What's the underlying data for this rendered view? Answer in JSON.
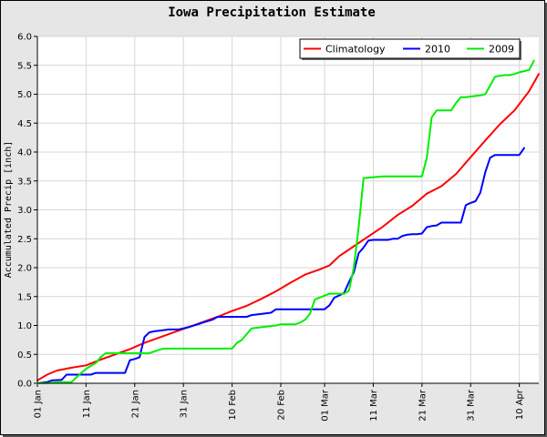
{
  "chart_data": {
    "type": "line",
    "title": "Iowa Precipitation Estimate",
    "ylabel": "Accumulated Precip [inch]",
    "xlabel": "",
    "ylim": [
      0,
      6.0
    ],
    "yticks": [
      0.0,
      0.5,
      1.0,
      1.5,
      2.0,
      2.5,
      3.0,
      3.5,
      4.0,
      4.5,
      5.0,
      5.5,
      6.0
    ],
    "ytick_labels": [
      "0.0",
      "0.5",
      "1.0",
      "1.5",
      "2.0",
      "2.5",
      "3.0",
      "3.5",
      "4.0",
      "4.5",
      "5.0",
      "5.5",
      "6.0"
    ],
    "xlim": [
      1,
      104
    ],
    "xticks": [
      1,
      11,
      21,
      31,
      41,
      51,
      60,
      70,
      80,
      90,
      100
    ],
    "xtick_labels": [
      "01 Jan",
      "11 Jan",
      "21 Jan",
      "31 Jan",
      "10 Feb",
      "20 Feb",
      "01 Mar",
      "11 Mar",
      "21 Mar",
      "31 Mar",
      "10 Apr"
    ],
    "x_unit": "day of year",
    "grid": true,
    "legend_position": "top-right",
    "series": [
      {
        "name": "Climatology",
        "color": "#ff0000",
        "x": [
          1,
          3,
          5,
          8,
          11,
          14,
          17,
          20,
          23,
          26,
          29,
          32,
          35,
          38,
          41,
          44,
          47,
          50,
          53,
          56,
          59,
          61,
          63,
          66,
          69,
          72,
          75,
          78,
          81,
          84,
          87,
          90,
          93,
          96,
          99,
          102,
          104
        ],
        "y": [
          0.05,
          0.15,
          0.22,
          0.27,
          0.31,
          0.41,
          0.5,
          0.59,
          0.7,
          0.79,
          0.88,
          0.97,
          1.06,
          1.15,
          1.25,
          1.34,
          1.46,
          1.59,
          1.74,
          1.88,
          1.97,
          2.04,
          2.2,
          2.37,
          2.54,
          2.71,
          2.91,
          3.07,
          3.28,
          3.41,
          3.62,
          3.91,
          4.2,
          4.48,
          4.72,
          5.05,
          5.35
        ]
      },
      {
        "name": "2010",
        "color": "#0000ff",
        "x": [
          1,
          3,
          4,
          6,
          7,
          12,
          13,
          19,
          20,
          21,
          22,
          23,
          24,
          25,
          27,
          28,
          30,
          31,
          32,
          34,
          35,
          37,
          38,
          40,
          41,
          44,
          45,
          49,
          50,
          52,
          53,
          56,
          57,
          59,
          60,
          61,
          62,
          63,
          64,
          65,
          66,
          67,
          68,
          69,
          70,
          73,
          74,
          75,
          76,
          77,
          78,
          79,
          80,
          81,
          82,
          83,
          84,
          85,
          86,
          88,
          89,
          90,
          91,
          92,
          93,
          94,
          95,
          96,
          97,
          98,
          99,
          100,
          101
        ],
        "y": [
          0.0,
          0.02,
          0.05,
          0.06,
          0.15,
          0.15,
          0.18,
          0.18,
          0.4,
          0.42,
          0.45,
          0.8,
          0.88,
          0.9,
          0.92,
          0.93,
          0.93,
          0.95,
          0.97,
          1.02,
          1.05,
          1.1,
          1.15,
          1.15,
          1.15,
          1.15,
          1.18,
          1.22,
          1.28,
          1.28,
          1.28,
          1.28,
          1.28,
          1.28,
          1.28,
          1.35,
          1.48,
          1.52,
          1.56,
          1.75,
          1.92,
          2.25,
          2.35,
          2.47,
          2.48,
          2.48,
          2.5,
          2.5,
          2.55,
          2.57,
          2.58,
          2.58,
          2.59,
          2.7,
          2.72,
          2.73,
          2.78,
          2.78,
          2.78,
          2.78,
          3.08,
          3.12,
          3.15,
          3.3,
          3.65,
          3.9,
          3.95,
          3.95,
          3.95,
          3.95,
          3.95,
          3.95,
          4.07
        ]
      },
      {
        "name": "2009",
        "color": "#00ee00",
        "x": [
          1,
          3,
          4,
          5,
          7,
          8,
          9,
          10,
          11,
          12,
          13,
          14,
          15,
          16,
          19,
          21,
          22,
          24,
          25,
          26,
          27,
          30,
          33,
          38,
          41,
          42,
          43,
          44,
          45,
          47,
          48,
          50,
          51,
          52,
          53,
          54,
          55,
          56,
          57,
          58,
          61,
          64,
          65,
          66,
          67,
          68,
          72,
          80,
          81,
          82,
          83,
          84,
          86,
          87,
          88,
          89,
          91,
          92,
          93,
          94,
          95,
          96,
          97,
          98,
          99,
          100,
          101,
          102,
          103
        ],
        "y": [
          0.0,
          0.0,
          0.01,
          0.02,
          0.02,
          0.02,
          0.1,
          0.18,
          0.25,
          0.3,
          0.35,
          0.45,
          0.52,
          0.52,
          0.52,
          0.52,
          0.52,
          0.52,
          0.55,
          0.58,
          0.6,
          0.6,
          0.6,
          0.6,
          0.6,
          0.7,
          0.75,
          0.85,
          0.95,
          0.97,
          0.98,
          1.0,
          1.02,
          1.02,
          1.02,
          1.02,
          1.05,
          1.1,
          1.2,
          1.45,
          1.55,
          1.55,
          1.6,
          2.0,
          2.7,
          3.55,
          3.58,
          3.58,
          3.9,
          4.6,
          4.72,
          4.72,
          4.72,
          4.85,
          4.95,
          4.95,
          4.97,
          4.98,
          5.0,
          5.15,
          5.3,
          5.32,
          5.33,
          5.33,
          5.35,
          5.38,
          5.4,
          5.42,
          5.58
        ]
      }
    ]
  }
}
